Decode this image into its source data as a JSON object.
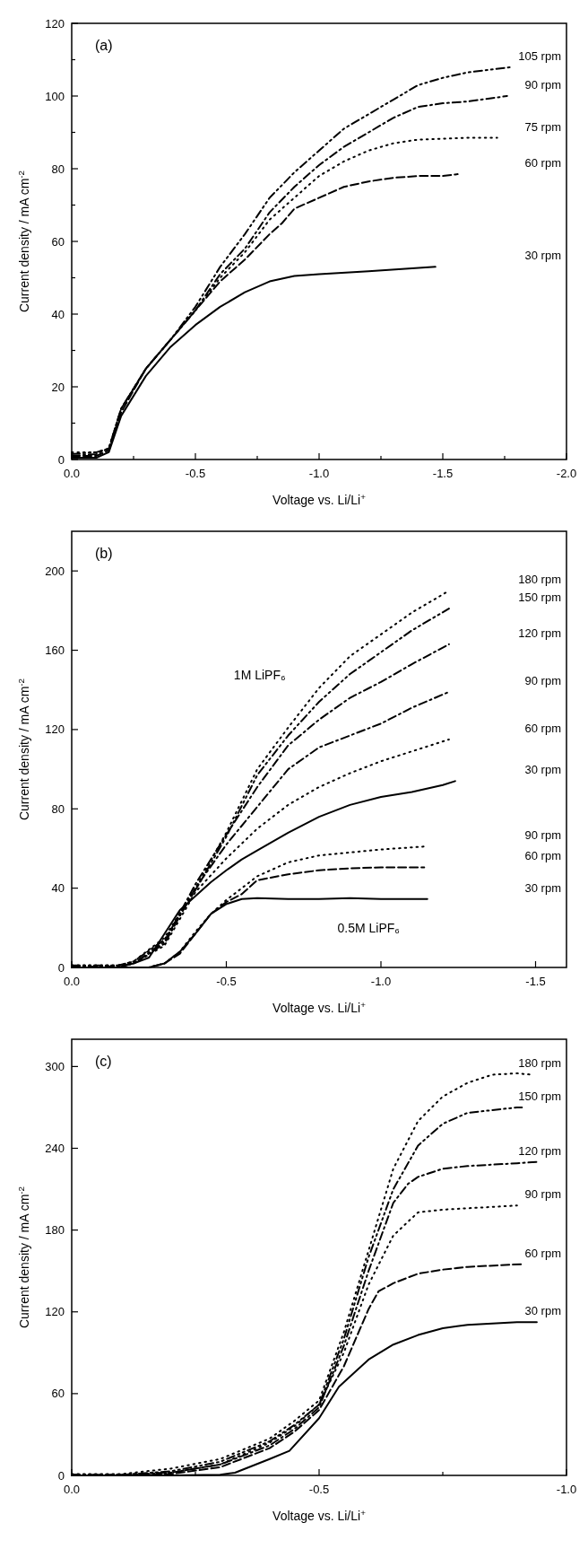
{
  "chart_data": [
    {
      "type": "line",
      "title": "(a)",
      "xlabel": "Voltage vs. Li/Li$^{+}$",
      "ylabel": "Current density / mA cm$^{-2}$",
      "xlim": [
        0,
        -2
      ],
      "ylim": [
        0,
        120
      ],
      "xticks": [
        {
          "value": 0,
          "label": "0.0"
        },
        {
          "value": -0.25,
          "label": null
        },
        {
          "value": -0.5,
          "label": "-0.5"
        },
        {
          "value": -0.75,
          "label": null
        },
        {
          "value": -1,
          "label": "-1.0"
        },
        {
          "value": -1.25,
          "label": null
        },
        {
          "value": -1.5,
          "label": "-1.5"
        },
        {
          "value": -1.75,
          "label": null
        },
        {
          "value": -2,
          "label": "-2.0"
        }
      ],
      "yticks": [
        0,
        {
          "value": 10,
          "label": null
        },
        20,
        {
          "value": 30,
          "label": null
        },
        40,
        {
          "value": 50,
          "label": null
        },
        60,
        {
          "value": 70,
          "label": null
        },
        80,
        {
          "value": 90,
          "label": null
        },
        100,
        {
          "value": 110,
          "label": null
        },
        120
      ],
      "series": [
        {
          "name": "105 rpm",
          "color": "#000000",
          "line_style": "dashdotdot",
          "x": [
            0,
            -0.1,
            -0.15,
            -0.2,
            -0.3,
            -0.4,
            -0.5,
            -0.6,
            -0.7,
            -0.8,
            -0.9,
            -1.0,
            -1.1,
            -1.2,
            -1.3,
            -1.4,
            -1.5,
            -1.6,
            -1.78
          ],
          "values": [
            1.5,
            2,
            3,
            14,
            25,
            33,
            42,
            53,
            62,
            72,
            79,
            85,
            91,
            95,
            99,
            103,
            105,
            106.5,
            108
          ]
        },
        {
          "name": "90 rpm",
          "color": "#000000",
          "line_style": "dashdot",
          "x": [
            0,
            -0.1,
            -0.15,
            -0.2,
            -0.3,
            -0.4,
            -0.5,
            -0.6,
            -0.7,
            -0.8,
            -0.9,
            -1.0,
            -1.1,
            -1.2,
            -1.3,
            -1.4,
            -1.5,
            -1.6,
            -1.76
          ],
          "values": [
            1,
            1.5,
            3,
            14,
            25,
            33,
            41,
            51,
            58,
            68,
            75,
            81,
            86,
            90,
            94,
            97,
            98,
            98.5,
            100
          ]
        },
        {
          "name": "75 rpm",
          "color": "#000000",
          "line_style": "dotted",
          "x": [
            0,
            -0.1,
            -0.15,
            -0.2,
            -0.3,
            -0.4,
            -0.5,
            -0.6,
            -0.7,
            -0.8,
            -0.9,
            -1.0,
            -1.1,
            -1.2,
            -1.3,
            -1.4,
            -1.6,
            -1.72
          ],
          "values": [
            2,
            2,
            3,
            14,
            25,
            33,
            41,
            50,
            57,
            66,
            72,
            78,
            82,
            85,
            87,
            88,
            88.5,
            88.5
          ]
        },
        {
          "name": "60 rpm",
          "color": "#000000",
          "line_style": "dashed",
          "x": [
            0,
            -0.1,
            -0.15,
            -0.2,
            -0.3,
            -0.4,
            -0.5,
            -0.6,
            -0.7,
            -0.8,
            -0.85,
            -0.9,
            -1.0,
            -1.1,
            -1.2,
            -1.3,
            -1.4,
            -1.5,
            -1.56
          ],
          "values": [
            1,
            1,
            2.5,
            13,
            25,
            33,
            41,
            49,
            55,
            62,
            65,
            69,
            72,
            75,
            76.5,
            77.5,
            78,
            78,
            78.5
          ]
        },
        {
          "name": "30 rpm",
          "color": "#000000",
          "line_style": "solid",
          "x": [
            0,
            -0.1,
            -0.15,
            -0.2,
            -0.3,
            -0.4,
            -0.5,
            -0.6,
            -0.7,
            -0.8,
            -0.9,
            -1.0,
            -1.2,
            -1.47
          ],
          "values": [
            0.5,
            0.5,
            2,
            12,
            23,
            31,
            37,
            42,
            46,
            49,
            50.5,
            51,
            51.8,
            53
          ]
        }
      ]
    },
    {
      "type": "line",
      "title": "(b)",
      "xlabel": "Voltage vs. Li/Li$^{+}$",
      "ylabel": "Current density / mA cm$^{-2}$",
      "xlim": [
        0,
        -1.6
      ],
      "ylim": [
        0,
        220
      ],
      "xticks": [
        {
          "value": 0,
          "label": "0.0"
        },
        {
          "value": -0.5,
          "label": "-0.5"
        },
        {
          "value": -1,
          "label": "-1.0"
        },
        {
          "value": -1.5,
          "label": "-1.5"
        }
      ],
      "yticks": [
        0,
        40,
        80,
        120,
        160,
        200
      ],
      "annotations": [
        "1M LiPF₆",
        "0.5M LiPF₆"
      ],
      "series": [
        {
          "name": "180 rpm",
          "color": "#000000",
          "line_style": "dotted",
          "x": [
            0,
            -0.15,
            -0.2,
            -0.3,
            -0.4,
            -0.5,
            -0.6,
            -0.7,
            -0.8,
            -0.9,
            -1.0,
            -1.1,
            -1.22
          ],
          "values": [
            1,
            1,
            3,
            15,
            40,
            68,
            100,
            121,
            141,
            157,
            168,
            179,
            190
          ]
        },
        {
          "name": "150 rpm",
          "color": "#000000",
          "line_style": "dashdotdot",
          "x": [
            0,
            -0.15,
            -0.2,
            -0.3,
            -0.4,
            -0.5,
            -0.6,
            -0.7,
            -0.8,
            -0.9,
            -1.0,
            -1.1,
            -1.22
          ],
          "values": [
            1,
            1,
            3,
            14,
            39,
            66,
            97,
            117,
            134,
            148,
            159,
            170,
            181
          ]
        },
        {
          "name": "120 rpm",
          "color": "#000000",
          "line_style": "dashdot",
          "x": [
            0,
            -0.15,
            -0.2,
            -0.3,
            -0.4,
            -0.5,
            -0.6,
            -0.7,
            -0.8,
            -0.9,
            -1.0,
            -1.1,
            -1.22
          ],
          "values": [
            0.5,
            0.5,
            2,
            13,
            42,
            67,
            91,
            112,
            125,
            136,
            144,
            153,
            163
          ]
        },
        {
          "name": "90 rpm",
          "color": "#000000",
          "line_style": "dashdot",
          "x": [
            0,
            -0.15,
            -0.2,
            -0.3,
            -0.4,
            -0.5,
            -0.6,
            -0.7,
            -0.8,
            -0.9,
            -1.0,
            -1.1,
            -1.22
          ],
          "values": [
            0.5,
            0.5,
            2,
            12,
            40,
            62,
            81,
            100,
            111,
            117,
            123,
            131,
            139
          ]
        },
        {
          "name": "60 rpm",
          "color": "#000000",
          "line_style": "dotted",
          "x": [
            0,
            -0.15,
            -0.2,
            -0.3,
            -0.4,
            -0.5,
            -0.6,
            -0.7,
            -0.8,
            -0.9,
            -1.0,
            -1.1,
            -1.22
          ],
          "values": [
            1,
            1,
            2,
            11,
            38,
            55,
            70,
            82,
            91,
            98,
            104,
            109,
            115
          ]
        },
        {
          "name": "30 rpm",
          "color": "#000000",
          "line_style": "solid",
          "x": [
            0,
            -0.15,
            -0.2,
            -0.25,
            -0.3,
            -0.35,
            -0.4,
            -0.45,
            -0.5,
            -0.55,
            -0.6,
            -0.7,
            -0.8,
            -0.9,
            -1.0,
            -1.1,
            -1.2,
            -1.24
          ],
          "values": [
            0,
            0,
            2,
            5,
            17,
            29,
            36,
            43,
            49,
            54.5,
            59,
            68,
            76,
            82,
            86,
            88.5,
            92,
            94
          ]
        },
        {
          "name": "90 rpm",
          "color": "#000000",
          "line_style": "dotted",
          "x": [
            0,
            -0.25,
            -0.3,
            -0.35,
            -0.4,
            -0.45,
            -0.5,
            -0.6,
            -0.7,
            -0.8,
            -0.9,
            -1.0,
            -1.14
          ],
          "values": [
            0,
            0,
            2,
            8,
            18,
            27,
            34,
            46,
            53,
            56.5,
            58,
            59.5,
            61
          ]
        },
        {
          "name": "60 rpm",
          "color": "#000000",
          "line_style": "dashed",
          "x": [
            0,
            -0.25,
            -0.3,
            -0.35,
            -0.4,
            -0.45,
            -0.5,
            -0.55,
            -0.6,
            -0.7,
            -0.8,
            -0.9,
            -1.0,
            -1.14
          ],
          "values": [
            0,
            0,
            2,
            7,
            17,
            27,
            33,
            37,
            44,
            47,
            49,
            50,
            50.5,
            50.5
          ]
        },
        {
          "name": "30 rpm",
          "color": "#000000",
          "line_style": "solid",
          "x": [
            0,
            -0.25,
            -0.3,
            -0.35,
            -0.4,
            -0.45,
            -0.5,
            -0.55,
            -0.6,
            -0.7,
            -0.8,
            -0.9,
            -1.0,
            -1.15
          ],
          "values": [
            0,
            0,
            2,
            8,
            17,
            27,
            32,
            34.5,
            35,
            34.5,
            34.5,
            35,
            34.5,
            34.5
          ]
        }
      ]
    },
    {
      "type": "line",
      "title": "(c)",
      "xlabel": "Voltage vs. Li/Li$^{+}$",
      "ylabel": "Current density / mA cm$^{-2}$",
      "xlim": [
        0,
        -1
      ],
      "ylim": [
        0,
        320
      ],
      "xticks": [
        {
          "value": 0,
          "label": "0.0"
        },
        {
          "value": -0.25,
          "label": null
        },
        {
          "value": -0.5,
          "label": "-0.5"
        },
        {
          "value": -0.75,
          "label": null
        },
        {
          "value": -1,
          "label": "-1.0"
        }
      ],
      "yticks": [
        0,
        60,
        120,
        180,
        240,
        300
      ],
      "series": [
        {
          "name": "180 rpm",
          "color": "#000000",
          "line_style": "dotted",
          "x": [
            0,
            -0.1,
            -0.2,
            -0.3,
            -0.4,
            -0.45,
            -0.5,
            -0.55,
            -0.6,
            -0.65,
            -0.7,
            -0.75,
            -0.8,
            -0.85,
            -0.9,
            -0.93
          ],
          "values": [
            1,
            1,
            5,
            12,
            27,
            40,
            55,
            105,
            165,
            225,
            260,
            278,
            288,
            294,
            295,
            294
          ]
        },
        {
          "name": "150 rpm",
          "color": "#000000",
          "line_style": "dashdotdot",
          "x": [
            0,
            -0.1,
            -0.2,
            -0.3,
            -0.4,
            -0.45,
            -0.5,
            -0.55,
            -0.6,
            -0.65,
            -0.7,
            -0.75,
            -0.8,
            -0.9,
            -0.91
          ],
          "values": [
            0.5,
            0.5,
            3,
            10,
            25,
            37,
            52,
            100,
            160,
            210,
            242,
            258,
            266,
            270,
            270
          ]
        },
        {
          "name": "120 rpm",
          "color": "#000000",
          "line_style": "dashdot",
          "x": [
            0,
            -0.1,
            -0.2,
            -0.3,
            -0.4,
            -0.45,
            -0.5,
            -0.55,
            -0.6,
            -0.65,
            -0.68,
            -0.7,
            -0.75,
            -0.8,
            -0.9,
            -0.94
          ],
          "values": [
            0.5,
            0.5,
            2,
            8,
            22,
            34,
            50,
            95,
            150,
            200,
            214,
            219,
            225,
            227,
            229,
            230
          ]
        },
        {
          "name": "90 rpm",
          "color": "#000000",
          "line_style": "dotted",
          "x": [
            0,
            -0.1,
            -0.2,
            -0.3,
            -0.4,
            -0.45,
            -0.5,
            -0.55,
            -0.6,
            -0.65,
            -0.7,
            -0.75,
            -0.8,
            -0.9
          ],
          "values": [
            0.5,
            0.5,
            2,
            8,
            24,
            36,
            52,
            90,
            140,
            176,
            193,
            195,
            196,
            198
          ]
        },
        {
          "name": "60 rpm",
          "color": "#000000",
          "line_style": "dashed",
          "x": [
            0,
            -0.1,
            -0.2,
            -0.3,
            -0.4,
            -0.45,
            -0.5,
            -0.55,
            -0.6,
            -0.62,
            -0.65,
            -0.7,
            -0.75,
            -0.8,
            -0.91
          ],
          "values": [
            0,
            0,
            1,
            6,
            20,
            32,
            48,
            80,
            122,
            135,
            141,
            148,
            151,
            153,
            155
          ]
        },
        {
          "name": "30 rpm",
          "color": "#000000",
          "line_style": "solid",
          "x": [
            0,
            -0.2,
            -0.3,
            -0.33,
            -0.4,
            -0.44,
            -0.5,
            -0.54,
            -0.6,
            -0.65,
            -0.7,
            -0.75,
            -0.8,
            -0.9,
            -0.94
          ],
          "values": [
            0,
            0,
            0.5,
            2,
            12,
            18,
            42,
            65,
            85,
            96,
            103,
            108,
            110.5,
            112.5,
            112.5
          ]
        }
      ]
    }
  ]
}
